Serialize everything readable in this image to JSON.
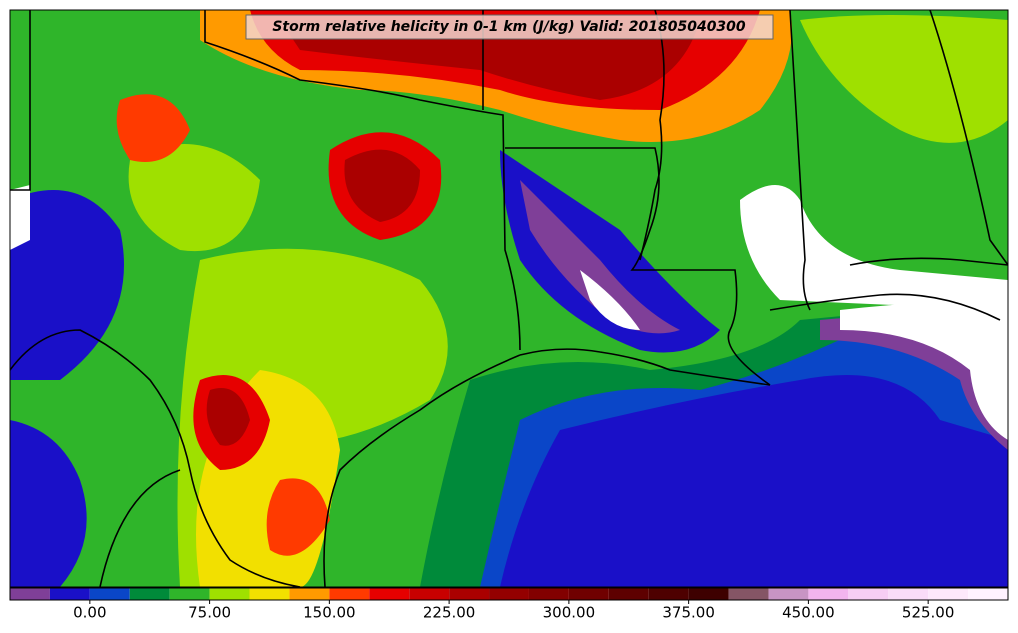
{
  "map": {
    "title": "Storm relative helicity in 0-1 km (J/kg) Valid: 201805040300"
  },
  "colorbar": {
    "bounds": [
      -50,
      -25,
      0,
      25,
      50,
      75,
      100,
      125,
      150,
      175,
      200,
      225,
      250,
      275,
      300,
      325,
      350,
      375,
      400,
      425,
      450,
      475,
      500,
      525,
      550,
      575
    ],
    "colors": [
      "#7f3f98",
      "#1a10c8",
      "#0a46c8",
      "#008a3a",
      "#2fb52a",
      "#9fe000",
      "#f2e000",
      "#ff9a00",
      "#ff3a00",
      "#e60000",
      "#c80000",
      "#aa0000",
      "#940000",
      "#820000",
      "#700000",
      "#5e0000",
      "#4e0000",
      "#3e0000",
      "#855565",
      "#c894c4",
      "#f2b4ee",
      "#f7cdf4",
      "#fadcf8",
      "#fde8fb",
      "#fff2ff"
    ],
    "ticks": [
      {
        "value": 0,
        "label": "0.00"
      },
      {
        "value": 75,
        "label": "75.00"
      },
      {
        "value": 150,
        "label": "150.00"
      },
      {
        "value": 225,
        "label": "225.00"
      },
      {
        "value": 300,
        "label": "300.00"
      },
      {
        "value": 375,
        "label": "375.00"
      },
      {
        "value": 450,
        "label": "450.00"
      },
      {
        "value": 525,
        "label": "525.00"
      }
    ]
  }
}
